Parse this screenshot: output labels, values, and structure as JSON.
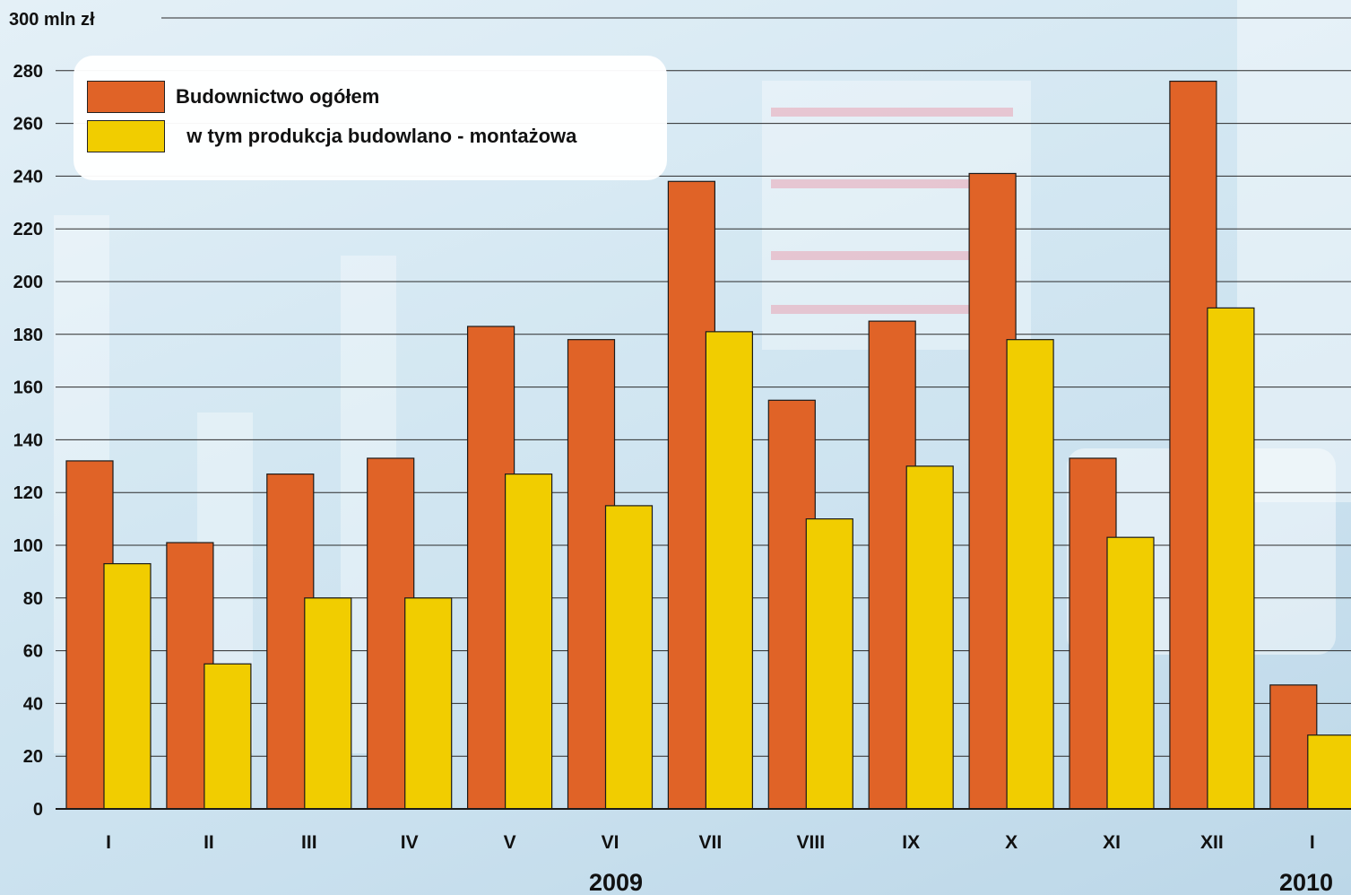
{
  "chart_data": {
    "type": "bar",
    "unit_label": "300 mln zł",
    "y_ticks": [
      "0",
      "20",
      "40",
      "60",
      "80",
      "100",
      "120",
      "140",
      "160",
      "180",
      "200",
      "220",
      "240",
      "260",
      "280"
    ],
    "ylim": [
      0,
      300
    ],
    "grid": true,
    "categories": [
      "I",
      "II",
      "III",
      "IV",
      "V",
      "VI",
      "VII",
      "VIII",
      "IX",
      "X",
      "XI",
      "XII",
      "I"
    ],
    "years": [
      {
        "label": "2009",
        "from": 0,
        "to": 11
      },
      {
        "label": "2010",
        "from": 12,
        "to": 12
      }
    ],
    "series": [
      {
        "name": "Budownictwo ogółem",
        "color": "#e06327",
        "values": [
          132,
          101,
          127,
          133,
          183,
          178,
          238,
          155,
          185,
          241,
          133,
          276,
          47
        ]
      },
      {
        "name": "  w tym produkcja budowlano - montażowa",
        "color": "#f1cd00",
        "values": [
          93,
          55,
          80,
          80,
          127,
          115,
          181,
          110,
          130,
          178,
          103,
          190,
          28
        ]
      }
    ],
    "legend_position": "top-left"
  }
}
